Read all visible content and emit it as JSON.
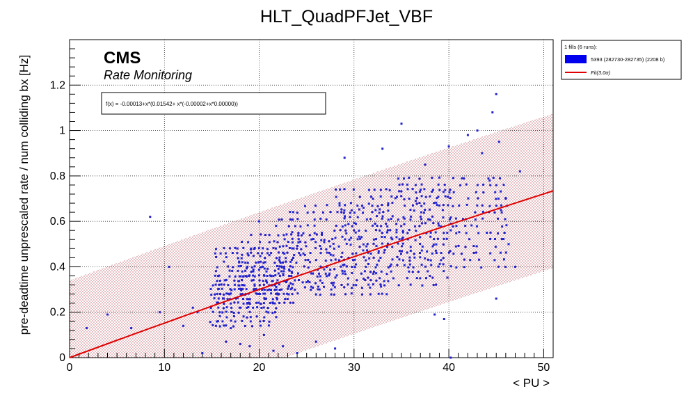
{
  "chart_data": {
    "type": "scatter",
    "title": "HLT_QuadPFJet_VBF",
    "xlabel": "< PU >",
    "ylabel": "pre-deadtime unprescaled rate / num colliding bx [Hz]",
    "xlim": [
      0,
      51
    ],
    "ylim": [
      0,
      1.4
    ],
    "xticks": [
      0,
      10,
      20,
      30,
      40,
      50
    ],
    "xtick_labels": [
      "0",
      "10",
      "20",
      "30",
      "40",
      "50"
    ],
    "yticks": [
      0,
      0.2,
      0.4,
      0.6,
      0.8,
      1.0,
      1.2
    ],
    "ytick_labels": [
      "0",
      "0.2",
      "0.4",
      "0.6",
      "0.8",
      "1",
      "1.2"
    ],
    "grid": true,
    "annotation_cms": "CMS",
    "annotation_sub": "Rate Monitoring",
    "fit_text": "f(x) = -0.00013+x*(0.01542+ x*(-0.00002+x*0.00000))",
    "fit": {
      "coeffs": [
        -0.00013,
        0.01542,
        -2e-05,
        0.0
      ],
      "color": "#e00000"
    },
    "band": {
      "halfwidth": 0.34,
      "color": "#c0606a"
    },
    "legend": {
      "position": "top-right",
      "header": "1 fills (6 runs):",
      "entries": [
        {
          "label": "5393 (282730-282735) (2208 b)",
          "color": "#0000ee"
        },
        {
          "label": "Fit(3.0σ)",
          "color": "#e00000"
        }
      ]
    },
    "series": [
      {
        "name": "5393 (282730-282735) (2208 b)",
        "color": "#2222cc",
        "points": [
          [
            1.8,
            0.13
          ],
          [
            4.0,
            0.19
          ],
          [
            6.5,
            0.13
          ],
          [
            8.5,
            0.62
          ],
          [
            9.5,
            0.2
          ],
          [
            10.5,
            0.4
          ],
          [
            12.0,
            0.14
          ],
          [
            13.0,
            0.22
          ],
          [
            13.5,
            0.2
          ],
          [
            14.0,
            0.02
          ],
          [
            16.5,
            0.07
          ],
          [
            17.0,
            0.13
          ],
          [
            18.0,
            0.06
          ],
          [
            19.0,
            0.05
          ],
          [
            20.0,
            0.6
          ],
          [
            20.5,
            0.1
          ],
          [
            21.5,
            0.03
          ],
          [
            22.5,
            0.05
          ],
          [
            24.0,
            0.02
          ],
          [
            26.0,
            0.07
          ],
          [
            28.0,
            0.04
          ],
          [
            29.0,
            0.88
          ],
          [
            31.0,
            0.66
          ],
          [
            32.0,
            0.7
          ],
          [
            33.0,
            0.92
          ],
          [
            35.0,
            1.03
          ],
          [
            36.5,
            0.69
          ],
          [
            37.5,
            0.85
          ],
          [
            38.0,
            0.36
          ],
          [
            38.5,
            0.19
          ],
          [
            39.0,
            0.67
          ],
          [
            39.5,
            0.17
          ],
          [
            40.0,
            0.93
          ],
          [
            40.2,
            0.0
          ],
          [
            40.8,
            0.58
          ],
          [
            41.5,
            0.61
          ],
          [
            42.0,
            0.98
          ],
          [
            43.0,
            1.0
          ],
          [
            43.5,
            0.9
          ],
          [
            44.0,
            0.55
          ],
          [
            44.3,
            0.78
          ],
          [
            44.6,
            1.08
          ],
          [
            45.0,
            1.16
          ],
          [
            45.0,
            0.26
          ],
          [
            45.3,
            0.95
          ],
          [
            45.5,
            0.65
          ],
          [
            46.0,
            0.7
          ],
          [
            46.3,
            0.5
          ],
          [
            47.0,
            0.4
          ],
          [
            47.5,
            0.82
          ]
        ],
        "bands": [
          {
            "xmin": 15.0,
            "xmax": 22.0,
            "ymin": 0.14,
            "ymax": 0.36,
            "step": 0.02,
            "dx": 0.4
          },
          {
            "xmin": 15.5,
            "xmax": 24.0,
            "ymin": 0.24,
            "ymax": 0.48,
            "step": 0.02,
            "dx": 0.45
          },
          {
            "xmin": 18.0,
            "xmax": 28.0,
            "ymin": 0.3,
            "ymax": 0.56,
            "step": 0.03,
            "dx": 0.5
          },
          {
            "xmin": 22.0,
            "xmax": 34.0,
            "ymin": 0.28,
            "ymax": 0.68,
            "step": 0.03,
            "dx": 0.55
          },
          {
            "xmin": 28.0,
            "xmax": 40.0,
            "ymin": 0.32,
            "ymax": 0.74,
            "step": 0.03,
            "dx": 0.6
          },
          {
            "xmin": 34.0,
            "xmax": 46.0,
            "ymin": 0.4,
            "ymax": 0.8,
            "step": 0.03,
            "dx": 0.6
          }
        ]
      }
    ]
  }
}
